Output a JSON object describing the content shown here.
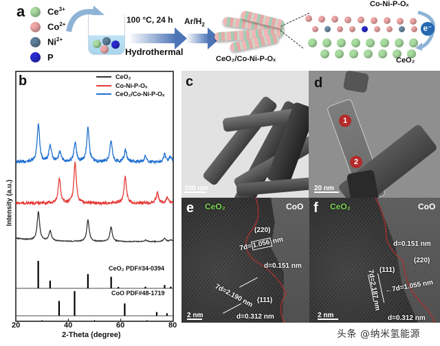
{
  "figure": {
    "panel_a": {
      "letter": "a",
      "legend": [
        {
          "label": "Ce",
          "charge": "3+",
          "color": "#a8dca0",
          "icon": "green-sphere-icon"
        },
        {
          "label": "Co",
          "charge": "2+",
          "color": "#f0a8a8",
          "icon": "pink-sphere-icon"
        },
        {
          "label": "Ni",
          "charge": "2+",
          "color": "#5f7f9a",
          "icon": "steel-blue-sphere-icon"
        },
        {
          "label": "P",
          "charge": "",
          "color": "#2a2ad0",
          "icon": "blue-sphere-icon"
        }
      ],
      "step1_condition": "100 °C, 24 h",
      "step1_method": "Hydrothermal",
      "step2_condition": "Ar/H",
      "step2_condition_sub": "2",
      "product_label": "CeO₂/Co-Ni-P-Oₓ",
      "lattice_top_label": "Co-Ni-P-Oₓ",
      "lattice_bottom_label": "CeO₂",
      "electron_label": "e⁻"
    },
    "panel_b": {
      "letter": "b",
      "legend": [
        {
          "label": "CeO₂",
          "color": "#333333"
        },
        {
          "label": "Co-Ni-P-Oₓ",
          "color": "#e53935"
        },
        {
          "label": "CeO₂/Co-Ni-P-Oₓ",
          "color": "#1e6fd0"
        }
      ],
      "ref1_label": "CeO₂ PDF#34-0394",
      "ref2_label": "CoO PDF#48-1719",
      "xlabel": "2-Theta (degree)",
      "ylabel": "Intensity (a.u.)",
      "xticks": [
        "20",
        "40",
        "60",
        "80"
      ]
    },
    "panel_c": {
      "letter": "c",
      "scalebar": "100 nm"
    },
    "panel_d": {
      "letter": "d",
      "scalebar": "20 nm",
      "markers": [
        "1",
        "2"
      ]
    },
    "panel_e": {
      "letter": "e",
      "phase_left": "CeO₂",
      "phase_right": "CoO",
      "plane1": "(220)",
      "measure1_prefix": "7d=",
      "measure1_value": "1.056",
      "measure1_unit": "nm",
      "dspacing1": "d=0.151 nm",
      "measure2": "7d=2.190 nm",
      "plane2": "(111)",
      "dspacing2": "d=0.312 nm",
      "scalebar": "2 nm"
    },
    "panel_f": {
      "letter": "f",
      "phase_left": "CeO₂",
      "phase_right": "CoO",
      "dspacing1": "d=0.151 nm",
      "plane1": "(220)",
      "plane2": "(111)",
      "measure1": "←7d=1.055 nm",
      "measure2": "7d=2.187 nm",
      "dspacing2": "d=0.312 nm",
      "scalebar": "2 nm"
    },
    "watermark": "头条 @纳米氢能源"
  },
  "chart_data": {
    "type": "line",
    "title": "",
    "xlabel": "2-Theta (degree)",
    "ylabel": "Intensity (a.u.)",
    "xlim": [
      20,
      80
    ],
    "xticks": [
      20,
      40,
      60,
      80
    ],
    "yticks": [],
    "grid": false,
    "legend_position": "top-right",
    "series": [
      {
        "name": "CeO2/Co-Ni-P-Ox",
        "color": "#1e6fd0",
        "offset": 0.78,
        "peaks": [
          [
            28.6,
            1.0
          ],
          [
            33.1,
            0.45
          ],
          [
            36.8,
            0.25
          ],
          [
            42.6,
            0.5
          ],
          [
            47.5,
            0.9
          ],
          [
            56.3,
            0.55
          ],
          [
            61.8,
            0.3
          ],
          [
            69.4,
            0.15
          ],
          [
            76.7,
            0.2
          ],
          [
            79.1,
            0.15
          ]
        ]
      },
      {
        "name": "Co-Ni-P-Ox",
        "color": "#e53935",
        "offset": 0.47,
        "peaks": [
          [
            36.6,
            0.6
          ],
          [
            42.6,
            1.0
          ],
          [
            61.7,
            0.65
          ],
          [
            73.9,
            0.25
          ],
          [
            77.8,
            0.15
          ]
        ]
      },
      {
        "name": "CeO2",
        "color": "#333333",
        "offset": 0.22,
        "peaks": [
          [
            28.6,
            1.0
          ],
          [
            33.1,
            0.35
          ],
          [
            47.5,
            0.75
          ],
          [
            56.3,
            0.5
          ],
          [
            69.4,
            0.05
          ],
          [
            76.7,
            0.12
          ],
          [
            79.1,
            0.06
          ]
        ]
      }
    ],
    "reference_patterns": [
      {
        "name": "CeO2 PDF#34-0394",
        "lines": [
          [
            28.55,
            1.0
          ],
          [
            33.08,
            0.28
          ],
          [
            47.48,
            0.52
          ],
          [
            56.33,
            0.42
          ],
          [
            59.09,
            0.05
          ],
          [
            69.4,
            0.06
          ],
          [
            76.7,
            0.12
          ],
          [
            79.07,
            0.06
          ]
        ]
      },
      {
        "name": "CoO PDF#48-1719",
        "lines": [
          [
            36.5,
            0.6
          ],
          [
            42.4,
            1.0
          ],
          [
            61.5,
            0.5
          ],
          [
            73.7,
            0.15
          ],
          [
            77.6,
            0.1
          ]
        ]
      }
    ]
  }
}
